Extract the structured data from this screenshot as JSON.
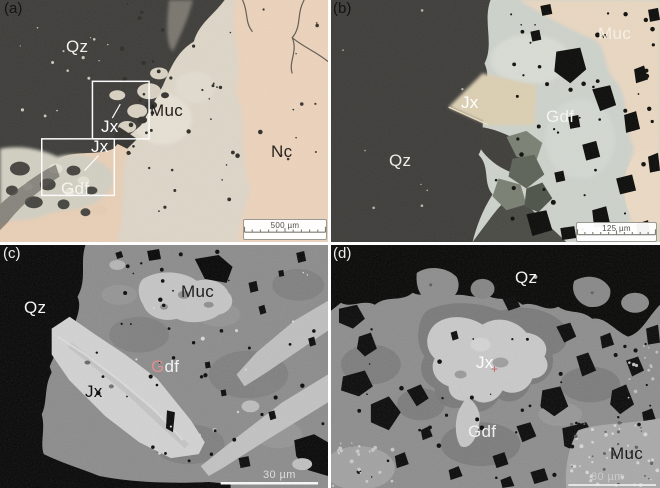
{
  "figure": {
    "panels": [
      {
        "letter": "(a)",
        "scale": "500 µm",
        "labels": {
          "qz": "Qz",
          "muc": "Muc",
          "jx1": "Jx",
          "jx2": "Jx",
          "gdf": "Gdf",
          "nc": "Nc"
        }
      },
      {
        "letter": "(b)",
        "scale": "125 µm",
        "labels": {
          "muc": "Muc",
          "jx": "Jx",
          "gdf": "Gdf",
          "qz": "Qz"
        }
      },
      {
        "letter": "(c)",
        "scale": "30 µm",
        "labels": {
          "qz": "Qz",
          "muc": "Muc",
          "gdf_g": "G",
          "gdf_df": "df",
          "jx": "Jx"
        }
      },
      {
        "letter": "(d)",
        "scale": "80 µm",
        "labels": {
          "qz": "Qz",
          "jx": "Jx",
          "marker": "+",
          "gdf": "Gdf",
          "muc": "Muc"
        }
      }
    ],
    "colors": {
      "host_peach": "#e9cfb6",
      "quartz_dark": "#3d3c39",
      "muscovite_cream": "#e9d7c1",
      "gdf_gray_green": "#cdd2cb",
      "jx_tan": "#dccfb2",
      "bse_black": "#070707",
      "bse_matrix_gray": "#8d8d8d",
      "bse_bright_gray": "#d0d0d0",
      "annotation_white": "#ffffff",
      "annotation_black": "#1c1c1c",
      "gdf_g_pink": "#dc9191",
      "marker_red": "#c0544c"
    }
  }
}
